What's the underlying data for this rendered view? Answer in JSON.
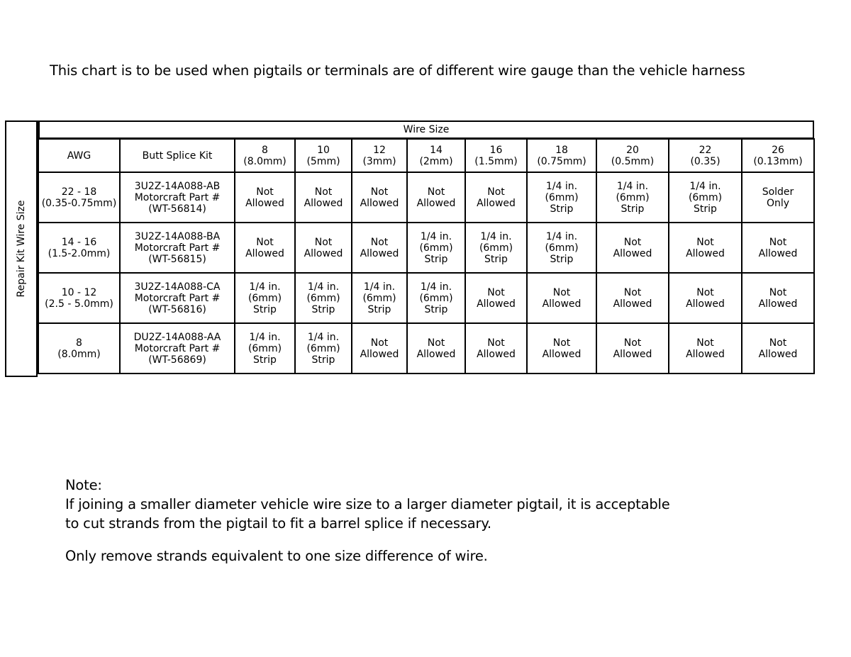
{
  "title": "This chart is to be used when pigtails or terminals are of different wire gauge than the vehicle harness",
  "table": {
    "side_label": "Repair Kit Wire Size",
    "group_header": "Wire Size",
    "headers": [
      "AWG",
      "Butt Splice Kit",
      "8\n(8.0mm)",
      "10\n(5mm)",
      "12\n(3mm)",
      "14\n(2mm)",
      "16\n(1.5mm)",
      "18\n(0.75mm)",
      "20\n(0.5mm)",
      "22\n(0.35)",
      "26\n(0.13mm)"
    ],
    "rows": [
      [
        "22 - 18\n(0.35-0.75mm)",
        "3U2Z-14A088-AB\nMotorcraft Part #\n(WT-56814)",
        "Not\nAllowed",
        "Not\nAllowed",
        "Not\nAllowed",
        "Not\nAllowed",
        "Not\nAllowed",
        "1/4 in.\n(6mm)\nStrip",
        "1/4 in.\n(6mm)\nStrip",
        "1/4 in.\n(6mm)\nStrip",
        "Solder\nOnly"
      ],
      [
        "14 - 16\n(1.5-2.0mm)",
        "3U2Z-14A088-BA\nMotorcraft Part #\n(WT-56815)",
        "Not\nAllowed",
        "Not\nAllowed",
        "Not\nAllowed",
        "1/4 in.\n(6mm)\nStrip",
        "1/4 in.\n(6mm)\nStrip",
        "1/4 in.\n(6mm)\nStrip",
        "Not\nAllowed",
        "Not\nAllowed",
        "Not\nAllowed"
      ],
      [
        "10 - 12\n(2.5 - 5.0mm)",
        "3U2Z-14A088-CA\nMotorcraft Part #\n(WT-56816)",
        "1/4 in.\n(6mm)\nStrip",
        "1/4 in.\n(6mm)\nStrip",
        "1/4 in.\n(6mm)\nStrip",
        "1/4 in.\n(6mm)\nStrip",
        "Not\nAllowed",
        "Not\nAllowed",
        "Not\nAllowed",
        "Not\nAllowed",
        "Not\nAllowed"
      ],
      [
        "8\n(8.0mm)",
        "DU2Z-14A088-AA\nMotorcraft Part #\n(WT-56869)",
        "1/4 in.\n(6mm)\nStrip",
        "1/4 in.\n(6mm)\nStrip",
        "Not\nAllowed",
        "Not\nAllowed",
        "Not\nAllowed",
        "Not\nAllowed",
        "Not\nAllowed",
        "Not\nAllowed",
        "Not\nAllowed"
      ]
    ]
  },
  "note": {
    "heading": "Note:",
    "line1": "If joining a smaller diameter vehicle wire size to a larger diameter pigtail, it is acceptable",
    "line2": "to cut strands from the pigtail to fit a barrel splice if necessary.",
    "line3": "Only remove strands equivalent to one size difference of wire."
  }
}
